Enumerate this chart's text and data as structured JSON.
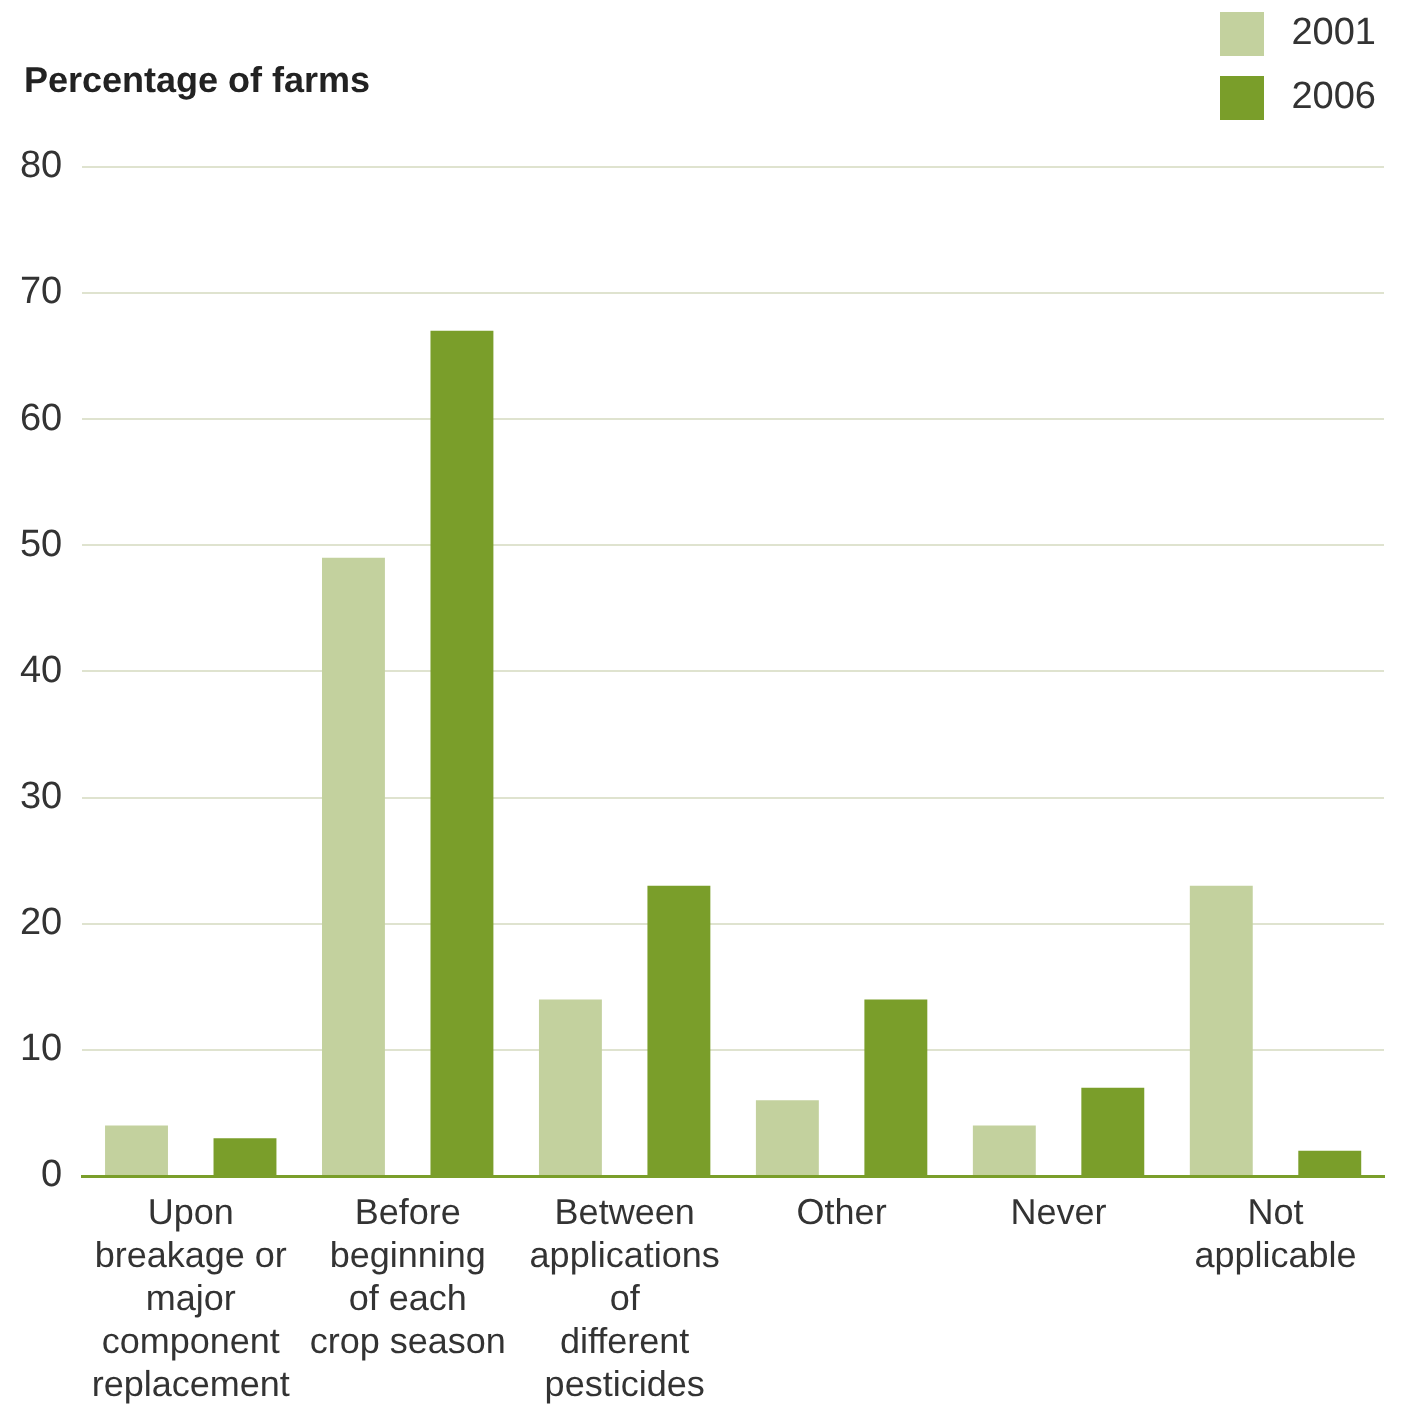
{
  "chart_data": {
    "type": "bar",
    "ylabel": "Percentage of farms",
    "categories": [
      "Upon breakage or major component replacement",
      "Before beginning of each crop season",
      "Between applications of different pesticides",
      "Other",
      "Never",
      "Not applicable"
    ],
    "series": [
      {
        "name": "2001",
        "color": "#c3d19e",
        "values": [
          4,
          49,
          14,
          6,
          4,
          23
        ]
      },
      {
        "name": "2006",
        "color": "#7a9e2a",
        "values": [
          3,
          67,
          23,
          14,
          7,
          2
        ]
      }
    ],
    "ylim": [
      0,
      80
    ],
    "yticks": [
      0,
      10,
      20,
      30,
      40,
      50,
      60,
      70,
      80
    ],
    "grid": "y",
    "legend": "top right"
  }
}
